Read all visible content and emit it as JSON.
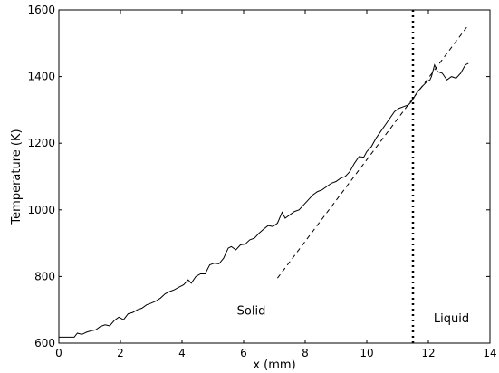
{
  "chart_data": {
    "type": "line",
    "title": "",
    "xlabel": "x (mm)",
    "ylabel": "Temperature (K)",
    "xlim": [
      0,
      14
    ],
    "ylim": [
      600,
      1600
    ],
    "xticks": [
      0,
      2,
      4,
      6,
      8,
      10,
      12,
      14
    ],
    "yticks": [
      600,
      800,
      1000,
      1200,
      1400,
      1600
    ],
    "grid": false,
    "legend": "none",
    "series": [
      {
        "style": "solid",
        "color": "#000000",
        "x": [
          0.0,
          0.5,
          0.6,
          0.75,
          0.9,
          1.05,
          1.2,
          1.35,
          1.5,
          1.65,
          1.8,
          1.95,
          2.1,
          2.25,
          2.4,
          2.55,
          2.7,
          2.85,
          3.0,
          3.15,
          3.3,
          3.45,
          3.6,
          3.75,
          3.9,
          4.05,
          4.2,
          4.3,
          4.45,
          4.6,
          4.75,
          4.9,
          5.05,
          5.2,
          5.35,
          5.5,
          5.6,
          5.75,
          5.9,
          6.05,
          6.2,
          6.35,
          6.5,
          6.65,
          6.8,
          6.95,
          7.1,
          7.25,
          7.35,
          7.5,
          7.65,
          7.8,
          7.95,
          8.1,
          8.25,
          8.4,
          8.55,
          8.7,
          8.85,
          9.0,
          9.15,
          9.3,
          9.45,
          9.6,
          9.75,
          9.9,
          10.0,
          10.15,
          10.3,
          10.45,
          10.6,
          10.75,
          10.9,
          11.05,
          11.2,
          11.35,
          11.45,
          11.55,
          11.65,
          11.8,
          11.95,
          12.05,
          12.1,
          12.2,
          12.3,
          12.45,
          12.6,
          12.75,
          12.9,
          13.05,
          13.2,
          13.3
        ],
        "y": [
          618,
          618,
          630,
          626,
          633,
          637,
          640,
          650,
          655,
          652,
          668,
          678,
          670,
          688,
          692,
          700,
          705,
          715,
          720,
          726,
          735,
          748,
          755,
          760,
          768,
          775,
          790,
          780,
          800,
          808,
          808,
          835,
          840,
          838,
          855,
          885,
          890,
          880,
          895,
          897,
          910,
          915,
          930,
          942,
          953,
          950,
          960,
          993,
          975,
          985,
          995,
          1000,
          1015,
          1030,
          1045,
          1055,
          1060,
          1070,
          1080,
          1085,
          1095,
          1100,
          1115,
          1140,
          1160,
          1158,
          1175,
          1190,
          1215,
          1235,
          1255,
          1275,
          1295,
          1305,
          1310,
          1315,
          1325,
          1340,
          1355,
          1370,
          1385,
          1390,
          1400,
          1435,
          1415,
          1410,
          1390,
          1400,
          1395,
          1410,
          1435,
          1440
        ]
      },
      {
        "style": "dashed",
        "color": "#000000",
        "x": [
          7.1,
          13.3
        ],
        "y": [
          795,
          1555
        ]
      }
    ],
    "vlines": [
      {
        "x": 11.5,
        "style": "dotted",
        "color": "#000000"
      }
    ],
    "annotations": [
      {
        "text": "Solid",
        "x": 6.25,
        "y": 685
      },
      {
        "text": "Liquid",
        "x": 12.75,
        "y": 662
      }
    ]
  }
}
